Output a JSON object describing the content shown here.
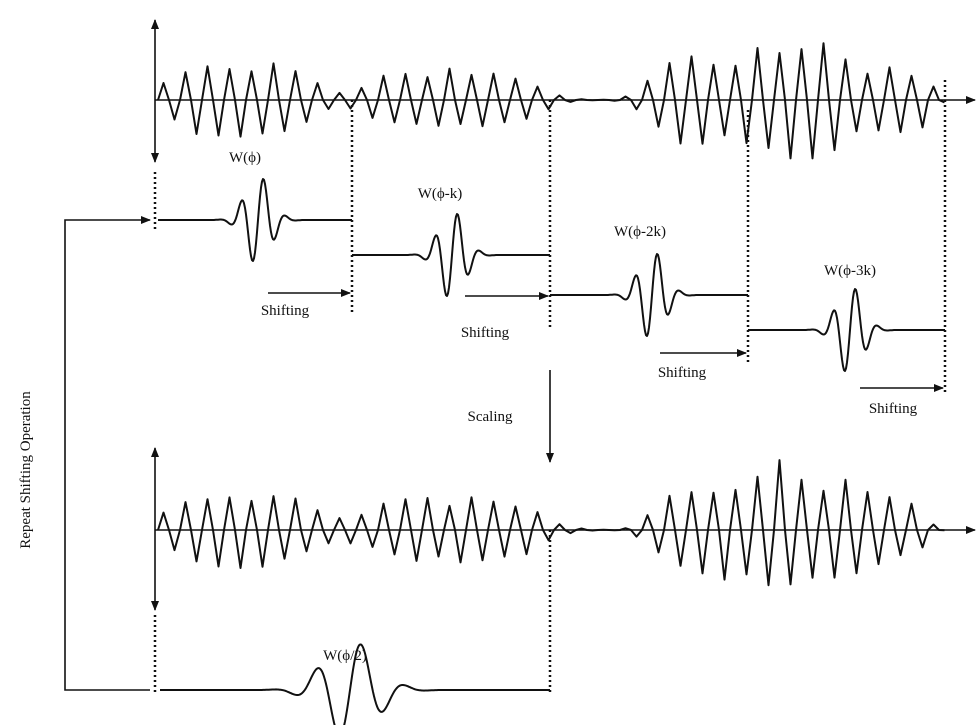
{
  "labels": {
    "w0": "W(ϕ)",
    "w1": "W(ϕ-k)",
    "w2": "W(ϕ-2k)",
    "w3": "W(ϕ-3k)",
    "w4": "W(ϕ/2)"
  },
  "shifting": [
    "Shifting",
    "Shifting",
    "Shifting",
    "Shifting"
  ],
  "scaling": "Scaling",
  "side_label": "Repeat Shifting Operation"
}
